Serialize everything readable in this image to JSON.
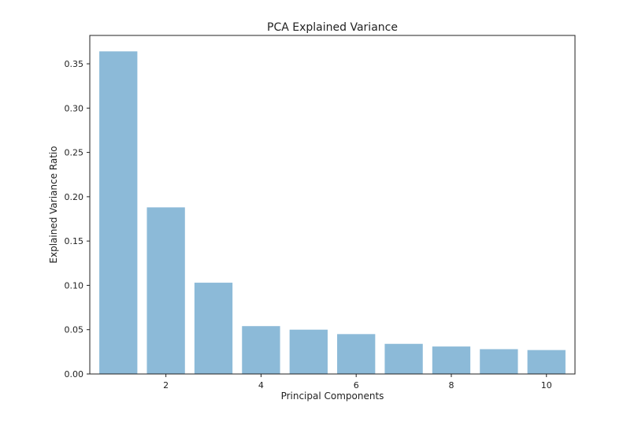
{
  "chart_data": {
    "type": "bar",
    "title": "PCA Explained Variance",
    "xlabel": "Principal Components",
    "ylabel": "Explained Variance Ratio",
    "x": [
      1,
      2,
      3,
      4,
      5,
      6,
      7,
      8,
      9,
      10
    ],
    "values": [
      0.364,
      0.188,
      0.103,
      0.054,
      0.05,
      0.045,
      0.034,
      0.031,
      0.028,
      0.027
    ],
    "xlim": [
      0.4,
      10.6
    ],
    "ylim": [
      0,
      0.382
    ],
    "xticks": [
      2,
      4,
      6,
      8,
      10
    ],
    "xtick_labels": [
      "2",
      "4",
      "6",
      "8",
      "10"
    ],
    "yticks": [
      0,
      0.05,
      0.1,
      0.15,
      0.2,
      0.25,
      0.3,
      0.35
    ],
    "ytick_labels": [
      "0.00",
      "0.05",
      "0.10",
      "0.15",
      "0.20",
      "0.25",
      "0.30",
      "0.35"
    ],
    "bar_color": "#8cbad8",
    "grid": false,
    "legend": false
  }
}
